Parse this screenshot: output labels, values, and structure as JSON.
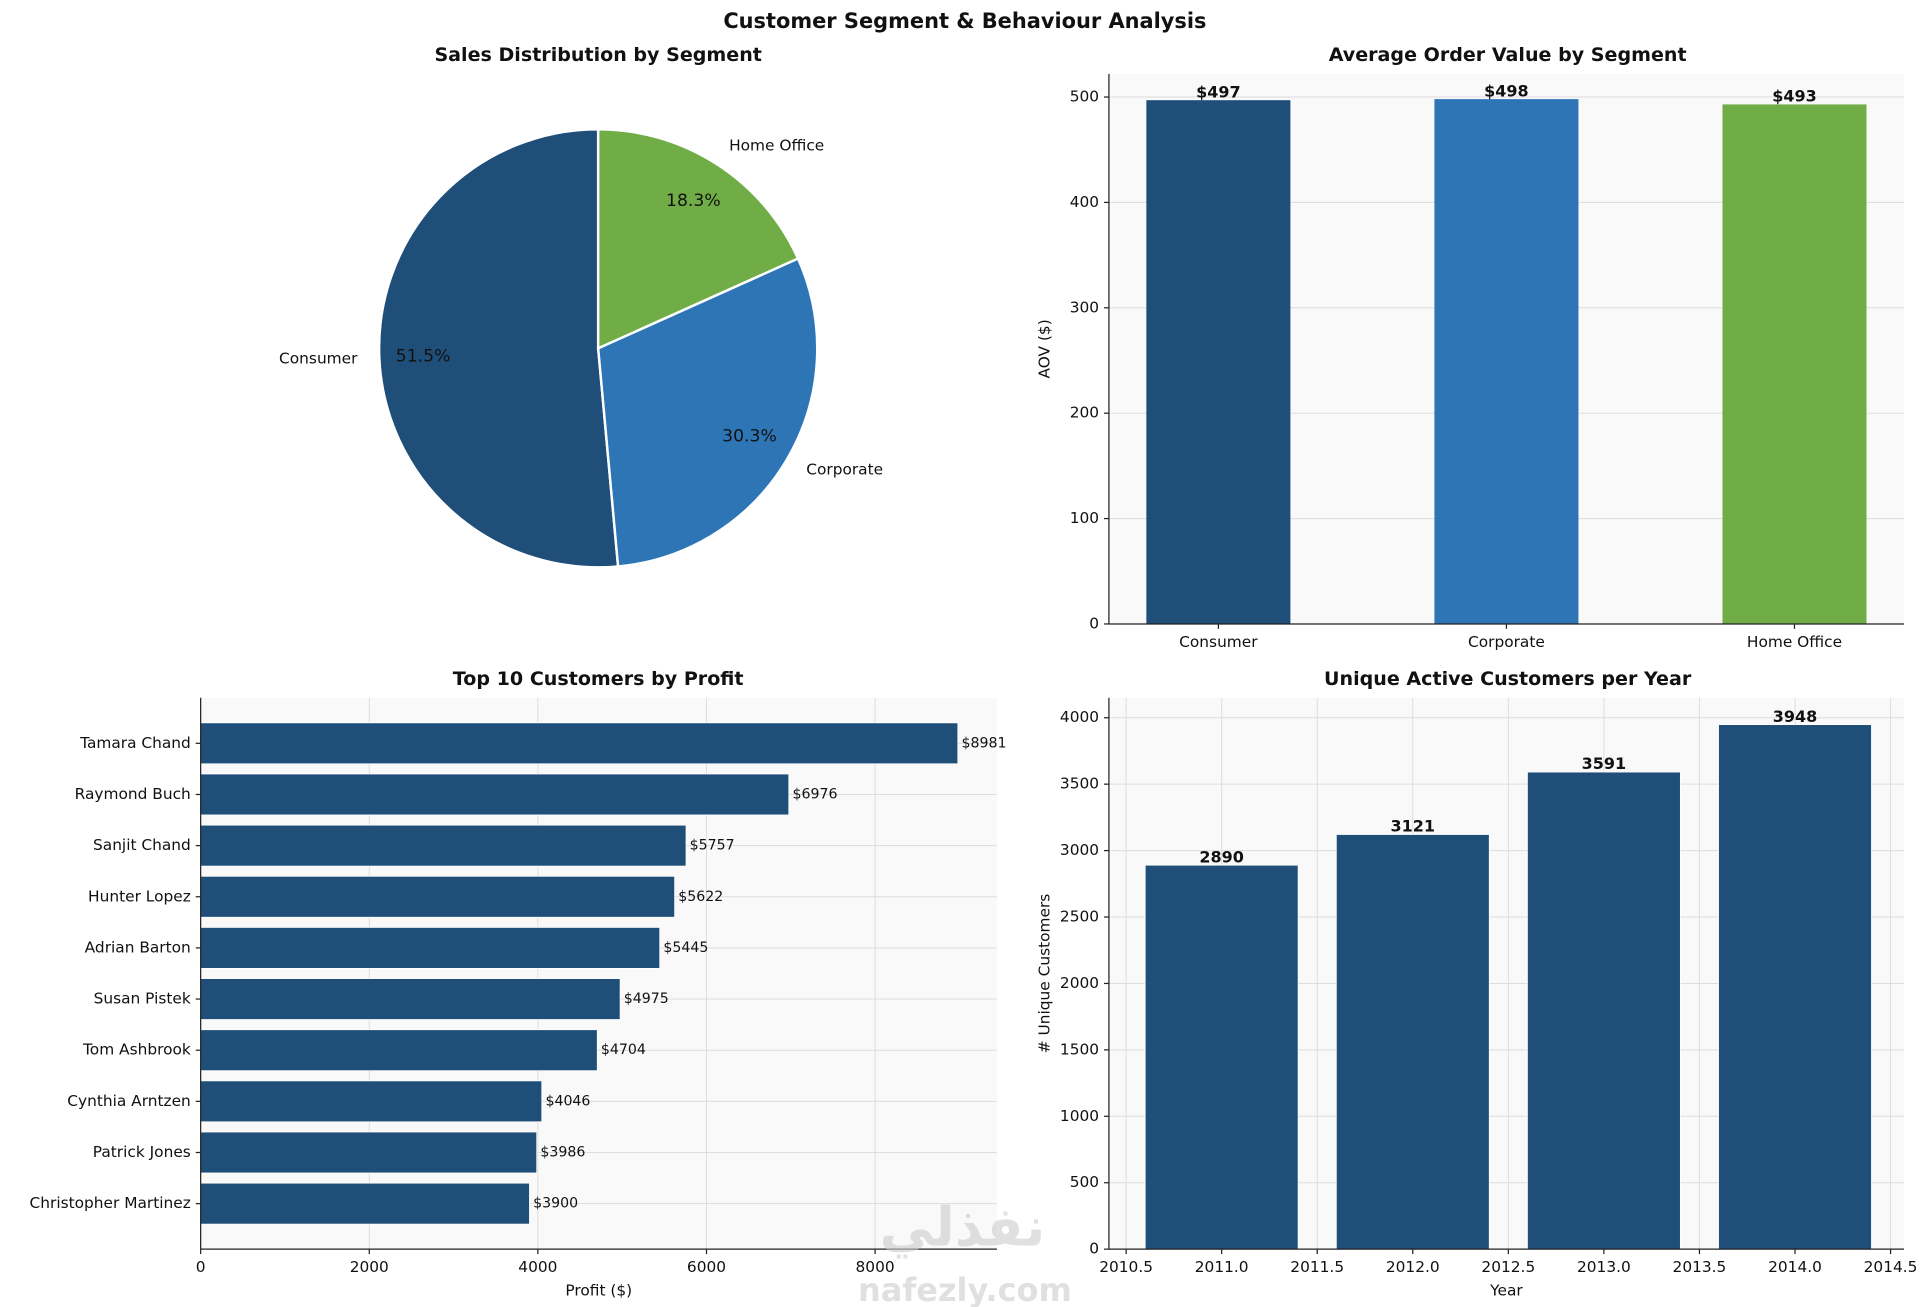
{
  "title": "Customer Segment & Behaviour Analysis",
  "watermark": [
    "نفذلي",
    "nafezly.com"
  ],
  "chart_data": [
    {
      "type": "pie",
      "title": "Sales Distribution by Segment",
      "categories": [
        "Consumer",
        "Corporate",
        "Home Office"
      ],
      "values": [
        51.5,
        30.3,
        18.3
      ],
      "value_labels": [
        "51.5%",
        "30.3%",
        "18.3%"
      ],
      "colors": [
        "#1f4e79",
        "#2e75b6",
        "#70ad47"
      ]
    },
    {
      "type": "bar",
      "title": "Average Order Value by Segment",
      "ylabel": "AOV ($)",
      "categories": [
        "Consumer",
        "Corporate",
        "Home Office"
      ],
      "values": [
        497,
        498,
        493
      ],
      "value_labels": [
        "$497",
        "$498",
        "$493"
      ],
      "colors": [
        "#1f4e79",
        "#2e75b6",
        "#70ad47"
      ],
      "ylim": [
        0,
        522
      ],
      "yticks": [
        0,
        100,
        200,
        300,
        400,
        500
      ],
      "grid": true
    },
    {
      "type": "barh",
      "title": "Top 10 Customers by Profit",
      "xlabel": "Profit ($)",
      "categories": [
        "Tamara Chand",
        "Raymond Buch",
        "Sanjit Chand",
        "Hunter Lopez",
        "Adrian Barton",
        "Susan Pistek",
        "Tom Ashbrook",
        "Cynthia Arntzen",
        "Patrick Jones",
        "Christopher Martinez"
      ],
      "values": [
        8981,
        6976,
        5757,
        5622,
        5445,
        4975,
        4704,
        4046,
        3986,
        3900
      ],
      "value_labels": [
        "$8981",
        "$6976",
        "$5757",
        "$5622",
        "$5445",
        "$4975",
        "$4704",
        "$4046",
        "$3986",
        "$3900"
      ],
      "color": "#1f4e79",
      "xlim": [
        0,
        9445
      ],
      "xticks": [
        0,
        2000,
        4000,
        6000,
        8000
      ],
      "grid": true
    },
    {
      "type": "histbar",
      "title": "Unique Active Customers per Year",
      "xlabel": "Year",
      "ylabel": "# Unique Customers",
      "x": [
        2011,
        2012,
        2013,
        2014
      ],
      "values": [
        2890,
        3121,
        3591,
        3948
      ],
      "bar_width": 0.8,
      "color": "#1f4e79",
      "xlim": [
        2010.41,
        2014.57
      ],
      "xticks": [
        2010.5,
        {
          "value": 2011,
          "label": "2011.0"
        },
        2011.5,
        {
          "value": 2012,
          "label": "2012.0"
        },
        2012.5,
        {
          "value": 2013,
          "label": "2013.0"
        },
        2013.5,
        {
          "value": 2014,
          "label": "2014.0"
        },
        2014.5
      ],
      "ylim": [
        0,
        4150
      ],
      "yticks": [
        0,
        500,
        1000,
        1500,
        2000,
        2500,
        3000,
        3500,
        4000
      ],
      "grid": true
    }
  ]
}
